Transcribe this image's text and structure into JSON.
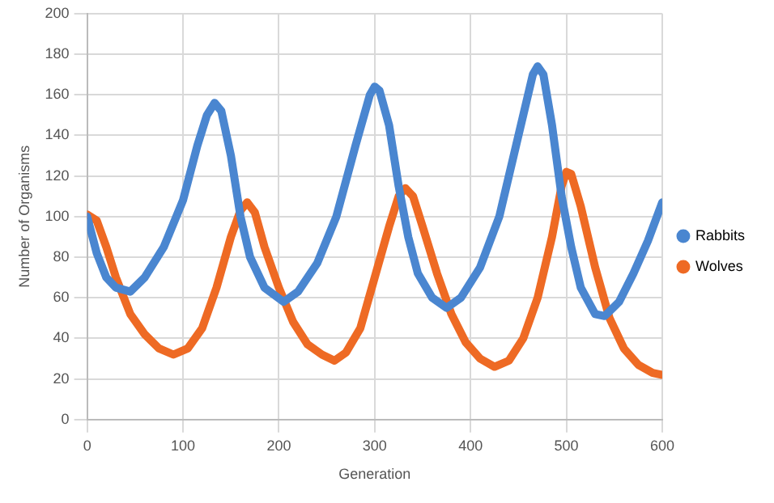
{
  "chart_data": {
    "type": "line",
    "xlabel": "Generation",
    "ylabel": "Number of Organisms",
    "xlim": [
      0,
      600
    ],
    "xticks": [
      0,
      100,
      200,
      300,
      400,
      500,
      600
    ],
    "ylim": [
      0,
      200
    ],
    "yticks": [
      0,
      20,
      40,
      60,
      80,
      100,
      120,
      140,
      160,
      180,
      200
    ],
    "grid": true,
    "legend": "right",
    "marker": "none",
    "line_style": "solid",
    "series": [
      {
        "name": "Rabbits",
        "color": "#4a86d0",
        "x": [
          0,
          10,
          20,
          30,
          45,
          60,
          80,
          100,
          115,
          125,
          133,
          140,
          150,
          160,
          170,
          185,
          205,
          220,
          240,
          260,
          280,
          295,
          300,
          305,
          315,
          325,
          335,
          345,
          360,
          375,
          390,
          410,
          430,
          450,
          465,
          470,
          476,
          485,
          495,
          505,
          515,
          530,
          540,
          555,
          570,
          585,
          600
        ],
        "values": [
          100,
          82,
          70,
          65,
          63,
          70,
          85,
          108,
          135,
          150,
          156,
          152,
          130,
          100,
          80,
          65,
          58,
          63,
          77,
          100,
          135,
          160,
          164,
          162,
          145,
          115,
          90,
          72,
          60,
          55,
          60,
          75,
          100,
          140,
          170,
          174,
          170,
          145,
          110,
          85,
          65,
          52,
          51,
          58,
          72,
          88,
          107
        ]
      },
      {
        "name": "Wolves",
        "color": "#ee6a24",
        "x": [
          0,
          10,
          20,
          30,
          45,
          60,
          75,
          90,
          105,
          120,
          135,
          150,
          160,
          167,
          175,
          185,
          200,
          215,
          230,
          245,
          258,
          270,
          285,
          300,
          315,
          325,
          332,
          340,
          350,
          365,
          380,
          395,
          410,
          425,
          440,
          455,
          470,
          485,
          495,
          500,
          505,
          515,
          530,
          545,
          560,
          575,
          590,
          600
        ],
        "values": [
          101,
          98,
          85,
          70,
          52,
          42,
          35,
          32,
          35,
          45,
          65,
          90,
          103,
          107,
          102,
          85,
          65,
          48,
          37,
          32,
          29,
          33,
          45,
          70,
          95,
          110,
          114,
          110,
          95,
          72,
          52,
          38,
          30,
          26,
          29,
          40,
          60,
          90,
          115,
          122,
          121,
          105,
          75,
          50,
          35,
          27,
          23,
          22
        ]
      }
    ]
  }
}
